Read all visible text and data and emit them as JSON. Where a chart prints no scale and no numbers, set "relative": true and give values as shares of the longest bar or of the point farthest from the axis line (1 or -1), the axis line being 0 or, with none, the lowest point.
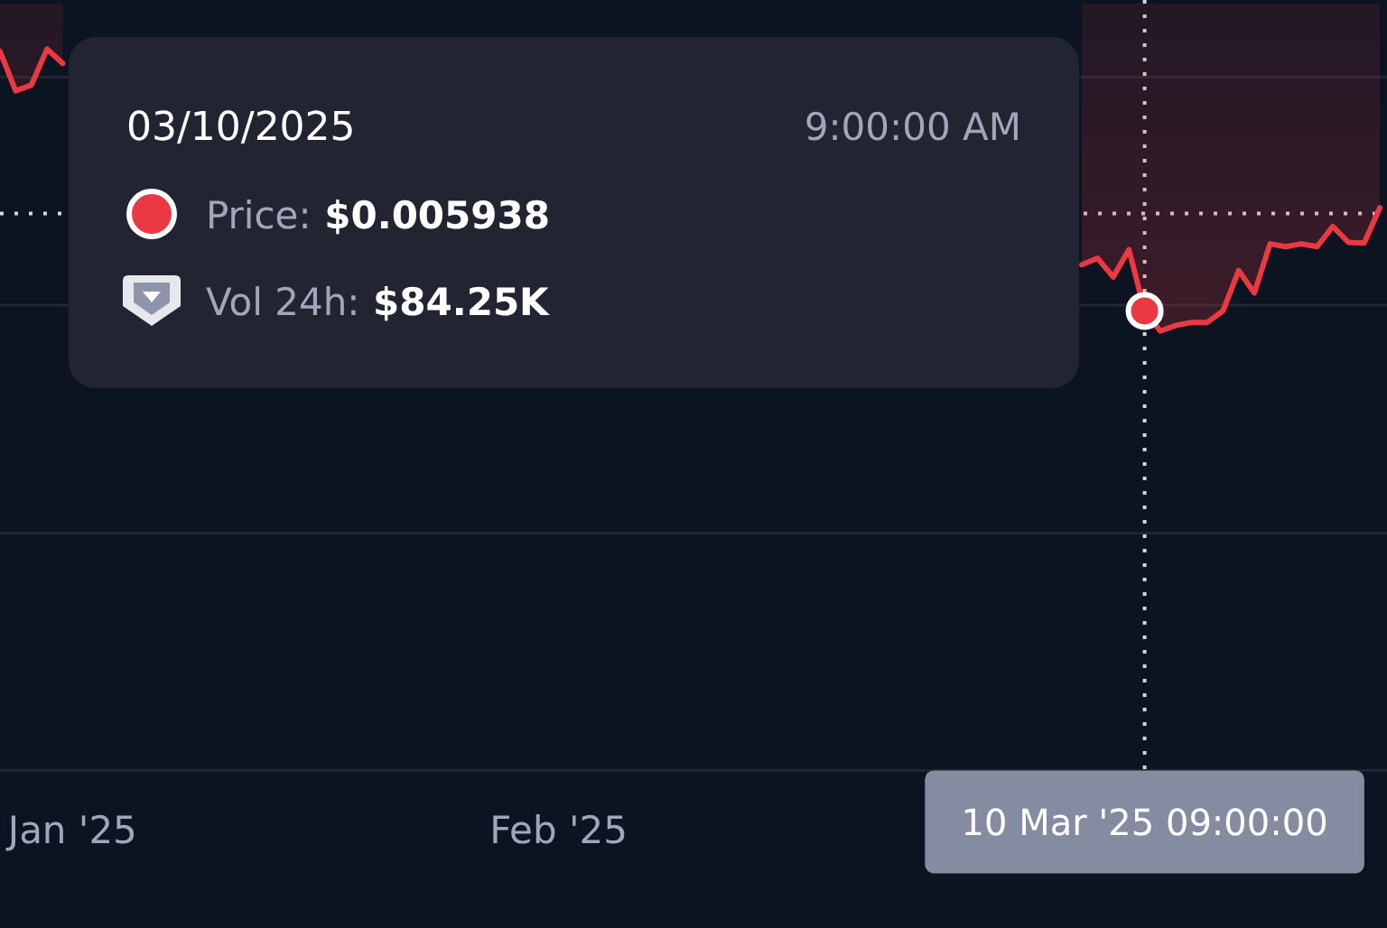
{
  "chart_data": {
    "type": "line",
    "relative": true,
    "x": [
      "2024-12-27T09:00",
      "2024-12-28T09:00",
      "2024-12-29T09:00",
      "2024-12-30T09:00",
      "2024-12-31T09:00",
      "2025-01-01T09:00",
      "2025-03-06T09:00",
      "2025-03-07T09:00",
      "2025-03-08T09:00",
      "2025-03-09T09:00",
      "2025-03-10T09:00",
      "2025-03-11T09:00",
      "2025-03-12T09:00",
      "2025-03-13T09:00",
      "2025-03-14T09:00",
      "2025-03-15T09:00",
      "2025-03-16T09:00",
      "2025-03-17T09:00",
      "2025-03-18T09:00",
      "2025-03-19T09:00",
      "2025-03-20T09:00",
      "2025-03-21T09:00",
      "2025-03-22T09:00",
      "2025-03-23T09:00",
      "2025-03-24T09:00",
      "2025-03-25T09:00"
    ],
    "series": [
      {
        "color": "#ea3943",
        "values": [
          0.997,
          0.942,
          0.95,
          1,
          0.98,
          null,
          0.701,
          0.71,
          0.684,
          0.722,
          0.637,
          0.609,
          0.617,
          0.621,
          0.621,
          0.637,
          0.693,
          0.662,
          0.73,
          0.726,
          0.73,
          0.726,
          0.754,
          0.732,
          0.731,
          0.78
        ],
        "lower": [
          0.997,
          0.942,
          0.95,
          1,
          0.98,
          null,
          0.701,
          0.71,
          0.684,
          0.722,
          0.637,
          0.609,
          0.617,
          0.621,
          0.621,
          0.637,
          0.693,
          0.662,
          0.73,
          0.726,
          0.73,
          0.726,
          0.754,
          0.732,
          0.731,
          0.78
        ],
        "upper": [
          1.063,
          1.063,
          1.063,
          1.063,
          1.063,
          null,
          1.063,
          1.063,
          1.063,
          1.063,
          1.063,
          1.063,
          1.063,
          1.063,
          1.063,
          1.063,
          1.063,
          1.063,
          1.063,
          1.063,
          1.063,
          1.063,
          1.063,
          1.063,
          1.063,
          1.063
        ]
      },
      {
        "type": "scatter",
        "x": [
          "2025-03-10T09:00"
        ],
        "values": [
          0.637
        ],
        "color": "#ea3943",
        "marker": "circle"
      }
    ],
    "xlim": [
      "2024-12-27T09:00",
      "2025-03-25T20:00"
    ],
    "xticks": [
      {
        "value": "2025-01-01",
        "label": "Jan '25"
      },
      {
        "value": "2025-02-01",
        "label": "Feb '25"
      }
    ],
    "tick_labels": "x",
    "marker": "none",
    "line_style": "solid",
    "ref_lines": [
      {
        "axis": "y",
        "value": 0.329,
        "line_style": "solid",
        "color": "#222531"
      },
      {
        "axis": "y",
        "value": 0.645,
        "line_style": "solid",
        "color": "#222531"
      },
      {
        "axis": "y",
        "value": 0.961,
        "line_style": "solid",
        "color": "#222531"
      },
      {
        "axis": "x",
        "value": "2025-03-10T09:00",
        "label": "10 Mar '25 09:00:00",
        "line_style": "dotted",
        "color": "#d5d8e0"
      },
      {
        "axis": "y",
        "value": 0.772,
        "line_style": "dotted",
        "color": "#d5d8e0"
      }
    ],
    "annotations": [
      "03/10/2025",
      "9:00:00 AM",
      "Price: $0.005938",
      "Vol 24h: $84.25K"
    ]
  }
}
